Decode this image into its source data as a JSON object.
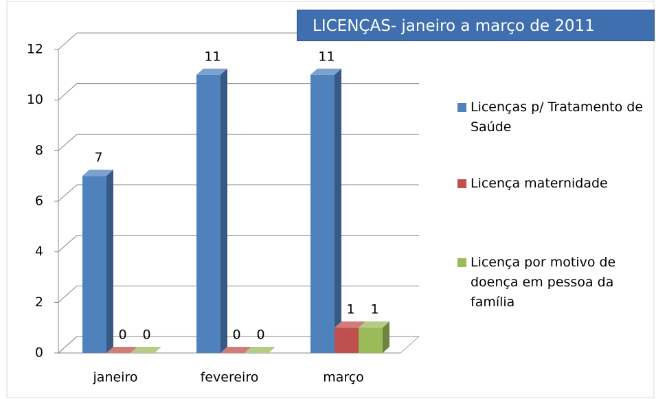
{
  "chart_data": {
    "type": "bar3d",
    "title": "LICENÇAS- janeiro a março de 2011",
    "categories": [
      "janeiro",
      "fevereiro",
      "março"
    ],
    "series": [
      {
        "name": "Licenças p/ Tratamento de Saúde",
        "color": "#4f81bd",
        "values": [
          7,
          11,
          11
        ]
      },
      {
        "name": "Licença maternidade",
        "color": "#c0504d",
        "values": [
          0,
          0,
          1
        ]
      },
      {
        "name": "Licença por motivo de doença em pessoa da família",
        "color": "#9bbb59",
        "values": [
          0,
          0,
          1
        ]
      }
    ],
    "ylim": [
      0,
      12
    ],
    "yticks": [
      0,
      2,
      4,
      6,
      8,
      10,
      12
    ],
    "grid": true,
    "legend": "right",
    "data_labels": true
  }
}
